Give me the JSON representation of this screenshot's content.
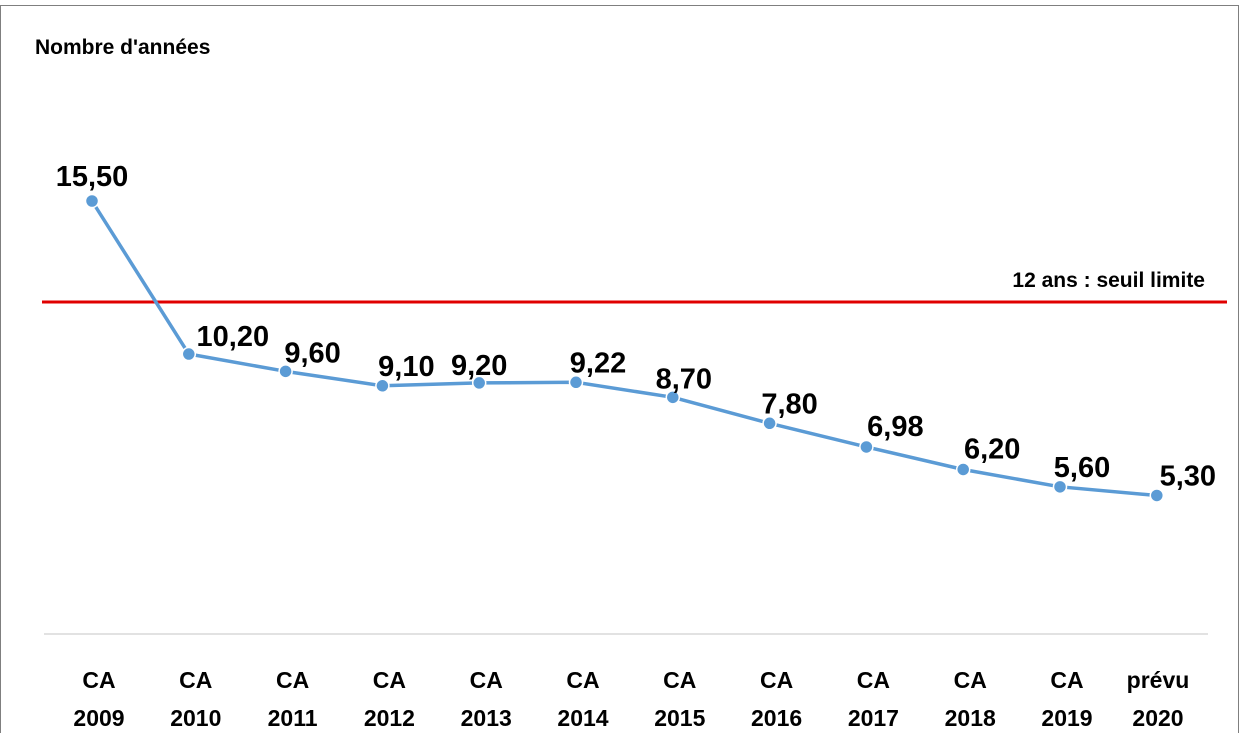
{
  "chart_data": {
    "type": "line",
    "ylabel": "Nombre d'années",
    "categories": [
      [
        "CA",
        "2009"
      ],
      [
        "CA",
        "2010"
      ],
      [
        "CA",
        "2011"
      ],
      [
        "CA",
        "2012"
      ],
      [
        "CA",
        "2013"
      ],
      [
        "CA",
        "2014"
      ],
      [
        "CA",
        "2015"
      ],
      [
        "CA",
        "2016"
      ],
      [
        "CA",
        "2017"
      ],
      [
        "CA",
        "2018"
      ],
      [
        "CA",
        "2019"
      ],
      [
        "prévu",
        "2020"
      ]
    ],
    "series": [
      {
        "values": [
          15.5,
          10.2,
          9.6,
          9.1,
          9.2,
          9.22,
          8.7,
          7.8,
          6.98,
          6.2,
          5.6,
          5.3
        ],
        "labels": [
          "15,50",
          "10,20",
          "9,60",
          "9,10",
          "9,20",
          "9,22",
          "8,70",
          "7,80",
          "6,98",
          "6,20",
          "5,60",
          "5,30"
        ],
        "color": "#5b9bd5"
      }
    ],
    "reference_line": {
      "value": 12,
      "label": "12 ans : seuil limite",
      "color": "#e00000"
    },
    "ylim": [
      0,
      18
    ],
    "grid": false,
    "legend": "none"
  }
}
